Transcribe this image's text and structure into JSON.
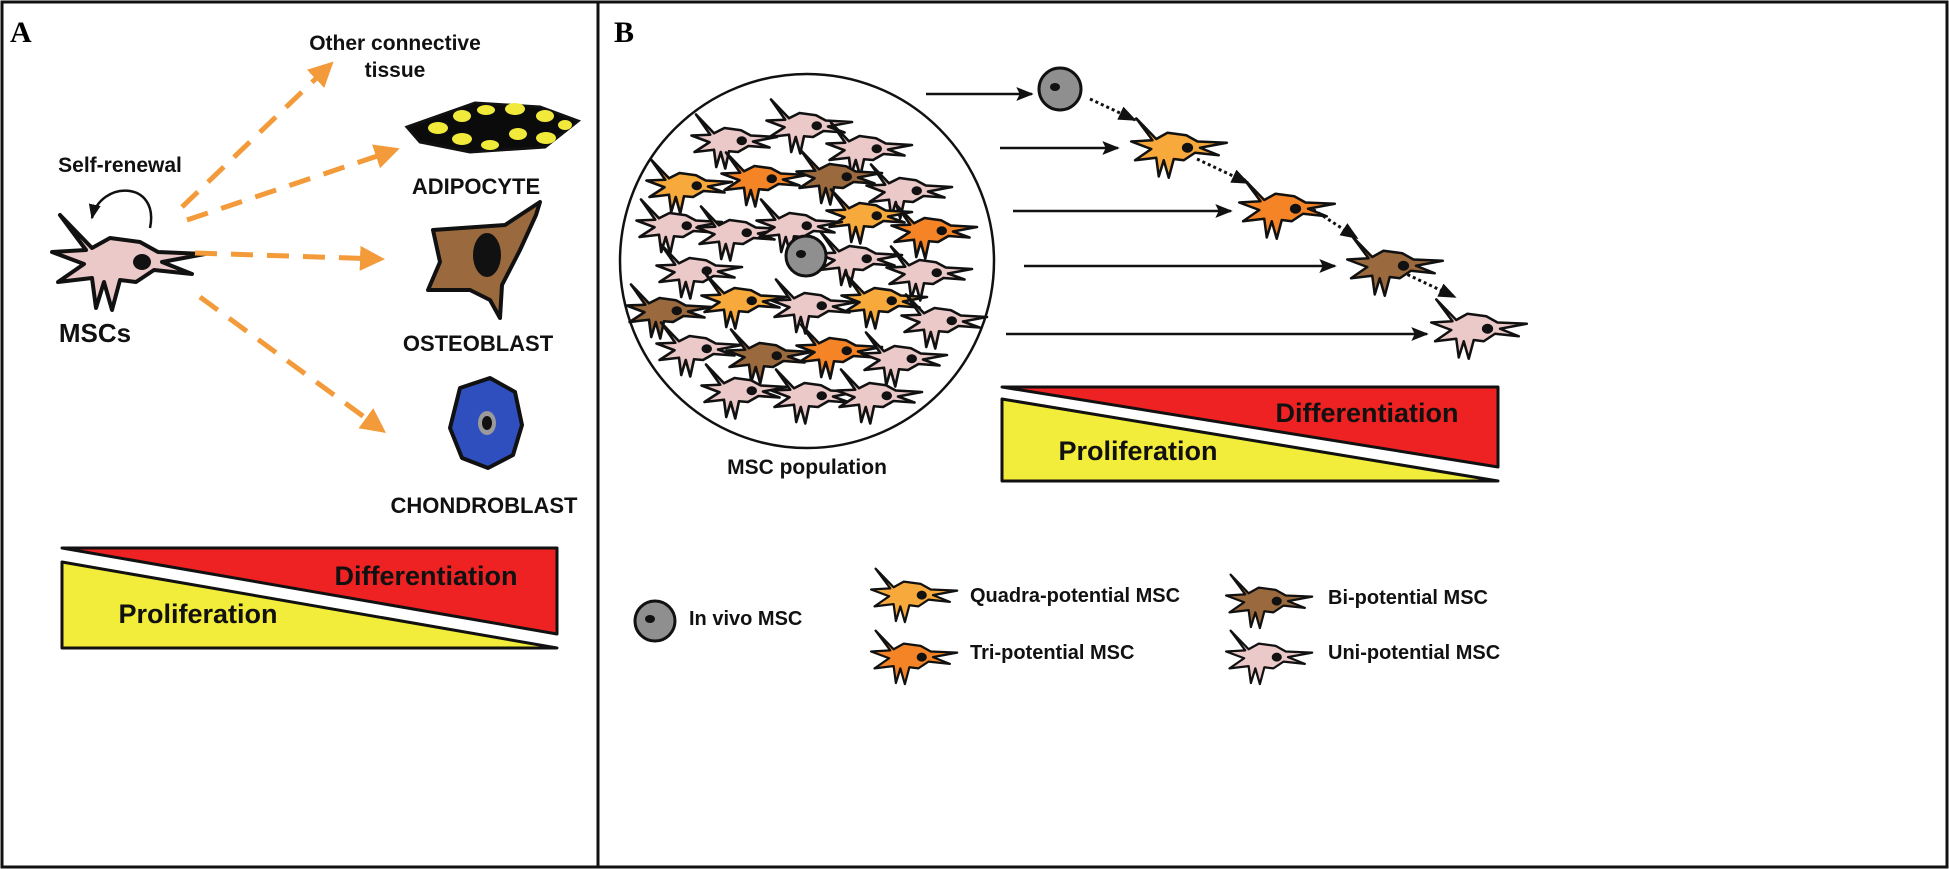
{
  "panel_a": {
    "letter": "A",
    "self_renewal": "Self-renewal",
    "mscs": "MSCs",
    "other_line1": "Other connective",
    "other_line2": "tissue",
    "adipocyte": "ADIPOCYTE",
    "osteoblast": "OSTEOBLAST",
    "chondroblast": "CHONDROBLAST",
    "differentiation": "Differentiation",
    "proliferation": "Proliferation"
  },
  "panel_b": {
    "letter": "B",
    "population": "MSC population",
    "differentiation": "Differentiation",
    "proliferation": "Proliferation"
  },
  "legend": {
    "in_vivo": "In vivo MSC",
    "quadra": "Quadra-potential MSC",
    "tri": "Tri-potential MSC",
    "bi": "Bi-potential MSC",
    "uni": "Uni-potential MSC"
  },
  "colors": {
    "arrow_orange": "#f39a3a",
    "differentiation_red": "#ee2222",
    "proliferation_yellow": "#f2ec3a",
    "cell_pink": "#ecc9c9",
    "cell_light_orange": "#f7a93b",
    "cell_orange": "#f58426",
    "cell_brown": "#9a6a3e",
    "cell_gray": "#8f8f8f",
    "chondro_blue": "#2f4fbf",
    "adipocyte_yellow": "#f2ea3a"
  }
}
